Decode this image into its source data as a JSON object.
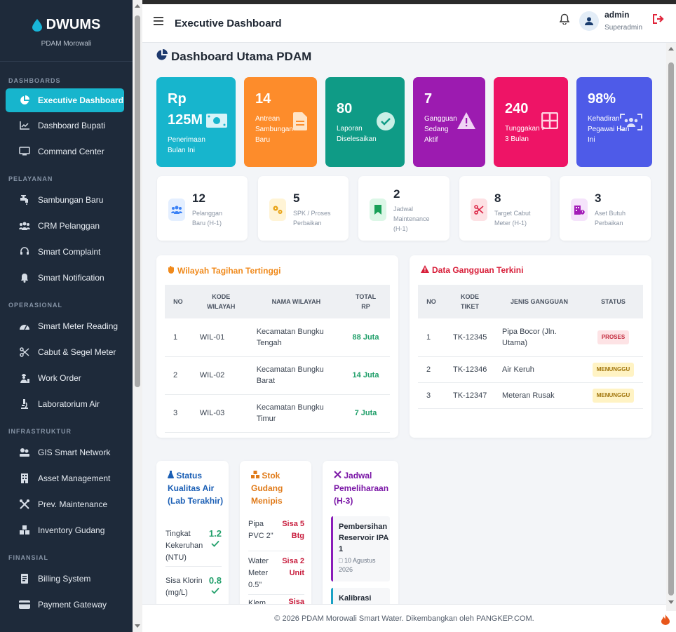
{
  "brand": {
    "name": "DWUMS",
    "sub": "PDAM Morowali"
  },
  "sidebar": {
    "sections": [
      {
        "title": "DASHBOARDS",
        "items": [
          {
            "label": "Executive Dashboard",
            "icon": "pie-chart-icon",
            "active": true
          },
          {
            "label": "Dashboard Bupati",
            "icon": "line-chart-icon"
          },
          {
            "label": "Command Center",
            "icon": "monitor-icon"
          }
        ]
      },
      {
        "title": "PELAYANAN",
        "items": [
          {
            "label": "Sambungan Baru",
            "icon": "faucet-icon"
          },
          {
            "label": "CRM Pelanggan",
            "icon": "users-icon"
          },
          {
            "label": "Smart Complaint",
            "icon": "headset-icon"
          },
          {
            "label": "Smart Notification",
            "icon": "bell-icon"
          }
        ]
      },
      {
        "title": "OPERASIONAL",
        "items": [
          {
            "label": "Smart Meter Reading",
            "icon": "gauge-icon"
          },
          {
            "label": "Cabut & Segel Meter",
            "icon": "scissors-icon"
          },
          {
            "label": "Work Order",
            "icon": "worker-icon"
          },
          {
            "label": "Laboratorium Air",
            "icon": "microscope-icon"
          }
        ]
      },
      {
        "title": "INFRASTRUKTUR",
        "items": [
          {
            "label": "GIS Smart Network",
            "icon": "map-icon"
          },
          {
            "label": "Asset Management",
            "icon": "building-icon"
          },
          {
            "label": "Prev. Maintenance",
            "icon": "tools-icon"
          },
          {
            "label": "Inventory Gudang",
            "icon": "boxes-icon"
          }
        ]
      },
      {
        "title": "FINANSIAL",
        "items": [
          {
            "label": "Billing System",
            "icon": "invoice-icon"
          },
          {
            "label": "Payment Gateway",
            "icon": "credit-card-icon"
          }
        ]
      }
    ]
  },
  "header": {
    "title": "Executive Dashboard",
    "user_name": "admin",
    "user_role": "Superadmin"
  },
  "page": {
    "title": "Dashboard Utama PDAM"
  },
  "kpis": [
    {
      "value": "Rp 125M",
      "label": "Penerimaan Bulan Ini",
      "icon": "money-icon",
      "color": "#17b5cd"
    },
    {
      "value": "14",
      "label": "Antrean Sambungan Baru",
      "icon": "document-icon",
      "color": "#fd8c2b"
    },
    {
      "value": "80",
      "label": "Laporan Diselesaikan",
      "icon": "check-circle-icon",
      "color": "#0f9b86"
    },
    {
      "value": "7",
      "label": "Gangguan Sedang Aktif",
      "icon": "warning-icon",
      "color": "#9c1bb0"
    },
    {
      "value": "240",
      "label": "Tunggakan > 3 Bulan",
      "icon": "grid-icon",
      "color": "#ee1466"
    },
    {
      "value": "98%",
      "label": "Kehadiran Pegawai Hari Ini",
      "icon": "face-scan-icon",
      "color": "#4e5be8"
    }
  ],
  "minis": [
    {
      "value": "12",
      "label": "Pelanggan Baru (H-1)",
      "icon": "users-icon"
    },
    {
      "value": "5",
      "label": "SPK / Proses Perbaikan",
      "icon": "gears-icon"
    },
    {
      "value": "2",
      "label": "Jadwal Maintenance (H-1)",
      "icon": "bookmark-icon"
    },
    {
      "value": "8",
      "label": "Target Cabut Meter (H-1)",
      "icon": "scissors-icon"
    },
    {
      "value": "3",
      "label": "Aset Butuh Perbaikan",
      "icon": "building-alert-icon"
    }
  ],
  "wilayah": {
    "title": "Wilayah Tagihan Tertinggi",
    "headers": [
      "NO",
      "KODE WILAYAH",
      "NAMA WILAYAH",
      "TOTAL RP"
    ],
    "rows": [
      {
        "no": "1",
        "kode": "WIL-01",
        "nama": "Kecamatan Bungku Tengah",
        "total": "88 Juta"
      },
      {
        "no": "2",
        "kode": "WIL-02",
        "nama": "Kecamatan Bungku Barat",
        "total": "14 Juta"
      },
      {
        "no": "3",
        "kode": "WIL-03",
        "nama": "Kecamatan Bungku Timur",
        "total": "7 Juta"
      }
    ]
  },
  "gangguan": {
    "title": "Data Gangguan Terkini",
    "headers": [
      "NO",
      "KODE TIKET",
      "JENIS GANGGUAN",
      "STATUS"
    ],
    "rows": [
      {
        "no": "1",
        "kode": "TK-12345",
        "jenis": "Pipa Bocor (Jln. Utama)",
        "status": "PROSES"
      },
      {
        "no": "2",
        "kode": "TK-12346",
        "jenis": "Air Keruh",
        "status": "MENUNGGU"
      },
      {
        "no": "3",
        "kode": "TK-12347",
        "jenis": "Meteran Rusak",
        "status": "MENUNGGU"
      }
    ]
  },
  "kualitas": {
    "title": "Status Kualitas Air (Lab Terakhir)",
    "items": [
      {
        "label": "Tingkat Kekeruhan (NTU)",
        "value": "1.2"
      },
      {
        "label": "Sisa Klorin (mg/L)",
        "value": "0.8"
      }
    ]
  },
  "stok": {
    "title": "Stok Gudang Menipis",
    "items": [
      {
        "label": "Pipa PVC 2\"",
        "value": "Sisa 5 Btg"
      },
      {
        "label": "Water Meter 0.5\"",
        "value": "Sisa 2 Unit"
      },
      {
        "label": "Klem",
        "value": "Sisa"
      }
    ]
  },
  "jadwal": {
    "title": "Jadwal Pemeliharaan (H-3)",
    "items": [
      {
        "title": "Pembersihan Reservoir IPA 1",
        "date": "10 Agustus 2026"
      },
      {
        "title": "Kalibrasi",
        "date": ""
      }
    ]
  },
  "footer": {
    "text": "© 2026 PDAM Morowali Smart Water. Dikembangkan oleh PANGKEP.COM."
  }
}
